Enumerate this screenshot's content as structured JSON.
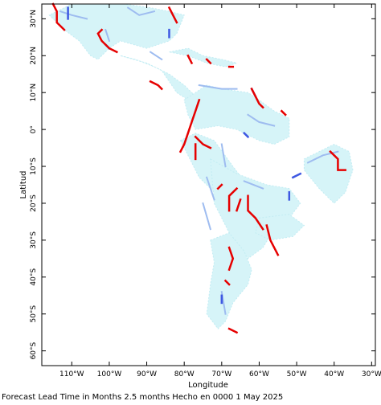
{
  "map": {
    "x_axis_label": "Longitude",
    "y_axis_label": "Latitud",
    "lon_ticks": [
      {
        "value": -110,
        "label": "110°W"
      },
      {
        "value": -100,
        "label": "100°W"
      },
      {
        "value": -90,
        "label": "90°W"
      },
      {
        "value": -80,
        "label": "80°W"
      },
      {
        "value": -70,
        "label": "70°W"
      },
      {
        "value": -60,
        "label": "60°W"
      },
      {
        "value": -50,
        "label": "50°W"
      },
      {
        "value": -40,
        "label": "40°W"
      },
      {
        "value": -30,
        "label": "30°W"
      }
    ],
    "lat_ticks": [
      {
        "value": 30,
        "label": "30°N"
      },
      {
        "value": 20,
        "label": "20°N"
      },
      {
        "value": 10,
        "label": "10°N"
      },
      {
        "value": 0,
        "label": "0°"
      },
      {
        "value": -10,
        "label": "10°S"
      },
      {
        "value": -20,
        "label": "20°S"
      },
      {
        "value": -30,
        "label": "30°S"
      },
      {
        "value": -40,
        "label": "40°S"
      },
      {
        "value": -50,
        "label": "50°S"
      },
      {
        "value": -60,
        "label": "60°S"
      }
    ],
    "lon_range": [
      -118,
      -29
    ],
    "lat_range": [
      -64,
      34
    ],
    "colors": {
      "frame": "#000000",
      "light": "#d6f4f8",
      "medium": "#9ebcf0",
      "dark_blue": "#3e58e2",
      "red": "#e60000"
    },
    "light_regions": [
      [
        [
          -110,
          34
        ],
        [
          -96,
          34
        ],
        [
          -89,
          33
        ],
        [
          -84,
          32
        ],
        [
          -80,
          31
        ],
        [
          -82,
          26
        ],
        [
          -84,
          24
        ],
        [
          -90,
          22
        ],
        [
          -97,
          24
        ],
        [
          -100,
          22
        ],
        [
          -103,
          19
        ],
        [
          -105,
          20
        ],
        [
          -108,
          24
        ],
        [
          -112,
          27
        ],
        [
          -116,
          31
        ]
      ],
      [
        [
          -97,
          20
        ],
        [
          -90,
          18
        ],
        [
          -86,
          16
        ],
        [
          -84,
          13
        ],
        [
          -82,
          10
        ],
        [
          -79,
          8
        ],
        [
          -77,
          9
        ],
        [
          -80,
          12
        ],
        [
          -84,
          15
        ],
        [
          -88,
          17
        ],
        [
          -93,
          19
        ]
      ],
      [
        [
          -84,
          21
        ],
        [
          -79,
          22
        ],
        [
          -75,
          20
        ],
        [
          -70,
          19
        ],
        [
          -66,
          18
        ],
        [
          -69,
          17
        ],
        [
          -74,
          18
        ],
        [
          -79,
          20
        ]
      ],
      [
        [
          -80,
          8
        ],
        [
          -74,
          12
        ],
        [
          -70,
          11
        ],
        [
          -63,
          10
        ],
        [
          -60,
          8
        ],
        [
          -56,
          5
        ],
        [
          -52,
          3
        ],
        [
          -52,
          -2
        ],
        [
          -56,
          -4
        ],
        [
          -60,
          -3
        ],
        [
          -66,
          0
        ],
        [
          -71,
          1
        ],
        [
          -77,
          0
        ],
        [
          -79,
          4
        ]
      ],
      [
        [
          -81,
          -3
        ],
        [
          -77,
          -1
        ],
        [
          -72,
          -3
        ],
        [
          -67,
          -10
        ],
        [
          -64,
          -14
        ],
        [
          -62,
          -18
        ],
        [
          -64,
          -22
        ],
        [
          -69,
          -22
        ],
        [
          -71,
          -18
        ],
        [
          -76,
          -13
        ],
        [
          -79,
          -7
        ]
      ],
      [
        [
          -73,
          -8
        ],
        [
          -66,
          -12
        ],
        [
          -58,
          -15
        ],
        [
          -52,
          -16
        ],
        [
          -49,
          -20
        ],
        [
          -52,
          -24
        ],
        [
          -56,
          -27
        ],
        [
          -59,
          -32
        ],
        [
          -63,
          -35
        ],
        [
          -67,
          -30
        ],
        [
          -69,
          -26
        ],
        [
          -72,
          -20
        ]
      ],
      [
        [
          -73,
          -30
        ],
        [
          -68,
          -28
        ],
        [
          -64,
          -33
        ],
        [
          -62,
          -38
        ],
        [
          -63,
          -42
        ],
        [
          -67,
          -47
        ],
        [
          -69,
          -52
        ],
        [
          -71,
          -54
        ],
        [
          -74,
          -50
        ],
        [
          -73,
          -42
        ],
        [
          -72,
          -36
        ]
      ],
      [
        [
          -60,
          -24
        ],
        [
          -52,
          -23
        ],
        [
          -48,
          -26
        ],
        [
          -51,
          -29
        ],
        [
          -57,
          -30
        ],
        [
          -61,
          -28
        ]
      ],
      [
        [
          -48,
          -8
        ],
        [
          -40,
          -4
        ],
        [
          -36,
          -6
        ],
        [
          -35,
          -11
        ],
        [
          -37,
          -17
        ],
        [
          -40,
          -20
        ],
        [
          -44,
          -16
        ],
        [
          -48,
          -11
        ]
      ]
    ],
    "medium_segments": [
      [
        [
          -113,
          32
        ],
        [
          -110,
          31
        ],
        [
          -106,
          30
        ]
      ],
      [
        [
          -95,
          33
        ],
        [
          -92,
          31
        ],
        [
          -88,
          32
        ]
      ],
      [
        [
          -101,
          27
        ],
        [
          -100,
          24
        ]
      ],
      [
        [
          -89,
          21
        ],
        [
          -86,
          19
        ]
      ],
      [
        [
          -76,
          12
        ],
        [
          -70,
          11
        ],
        [
          -66,
          11
        ]
      ],
      [
        [
          -63,
          4
        ],
        [
          -60,
          2
        ],
        [
          -56,
          1
        ]
      ],
      [
        [
          -70,
          -4
        ],
        [
          -69,
          -10
        ]
      ],
      [
        [
          -74,
          -13
        ],
        [
          -72,
          -19
        ]
      ],
      [
        [
          -64,
          -14
        ],
        [
          -59,
          -16
        ]
      ],
      [
        [
          -75,
          -20
        ],
        [
          -73,
          -27
        ]
      ],
      [
        [
          -47,
          -9
        ],
        [
          -43,
          -7
        ],
        [
          -39,
          -6
        ]
      ],
      [
        [
          -70,
          -44
        ],
        [
          -69,
          -50
        ]
      ]
    ],
    "dark_blue_segments": [
      [
        [
          -111,
          33
        ],
        [
          -111,
          30
        ]
      ],
      [
        [
          -101,
          23
        ],
        [
          -100,
          22
        ]
      ],
      [
        [
          -84,
          27
        ],
        [
          -84,
          25
        ]
      ],
      [
        [
          -62,
          11
        ],
        [
          -61,
          9
        ]
      ],
      [
        [
          -64,
          -1
        ],
        [
          -63,
          -2
        ]
      ],
      [
        [
          -51,
          -13
        ],
        [
          -49,
          -12
        ]
      ],
      [
        [
          -52,
          -17
        ],
        [
          -52,
          -19
        ]
      ],
      [
        [
          -70,
          -45
        ],
        [
          -70,
          -47
        ]
      ]
    ],
    "red_segments": [
      [
        [
          -115,
          34
        ],
        [
          -114,
          32
        ],
        [
          -114,
          29
        ],
        [
          -112,
          27
        ]
      ],
      [
        [
          -102,
          27
        ],
        [
          -103,
          26
        ],
        [
          -102,
          24
        ],
        [
          -100,
          22
        ],
        [
          -98,
          21
        ]
      ],
      [
        [
          -84,
          33
        ],
        [
          -83,
          31
        ],
        [
          -82,
          29
        ]
      ],
      [
        [
          -79,
          20
        ],
        [
          -78,
          18
        ]
      ],
      [
        [
          -74,
          19
        ],
        [
          -73,
          18
        ]
      ],
      [
        [
          -68,
          17
        ],
        [
          -67,
          17
        ]
      ],
      [
        [
          -89,
          13
        ],
        [
          -87,
          12
        ],
        [
          -86,
          11
        ]
      ],
      [
        [
          -76,
          8
        ],
        [
          -77,
          5
        ],
        [
          -78,
          2
        ],
        [
          -79,
          -1
        ],
        [
          -80,
          -4
        ],
        [
          -81,
          -6
        ]
      ],
      [
        [
          -77,
          -2
        ],
        [
          -75,
          -4
        ],
        [
          -73,
          -5
        ]
      ],
      [
        [
          -77,
          -4
        ],
        [
          -77,
          -8
        ]
      ],
      [
        [
          -62,
          11
        ],
        [
          -61,
          9
        ],
        [
          -60,
          7
        ],
        [
          -59,
          6
        ]
      ],
      [
        [
          -54,
          5
        ],
        [
          -53,
          4
        ]
      ],
      [
        [
          -68,
          -22
        ],
        [
          -68,
          -18
        ],
        [
          -66,
          -16
        ]
      ],
      [
        [
          -66,
          -22
        ],
        [
          -65,
          -19
        ]
      ],
      [
        [
          -63,
          -18
        ],
        [
          -63,
          -22
        ],
        [
          -61,
          -24
        ],
        [
          -59,
          -27
        ]
      ],
      [
        [
          -70,
          -15
        ],
        [
          -71,
          -16
        ]
      ],
      [
        [
          -68,
          -32
        ],
        [
          -67,
          -35
        ],
        [
          -68,
          -38
        ]
      ],
      [
        [
          -58,
          -26
        ],
        [
          -57,
          -30
        ],
        [
          -56,
          -32
        ],
        [
          -55,
          -34
        ]
      ],
      [
        [
          -69,
          -41
        ],
        [
          -68,
          -42
        ]
      ],
      [
        [
          -41,
          -6
        ],
        [
          -39,
          -8
        ],
        [
          -39,
          -11
        ],
        [
          -37,
          -11
        ]
      ],
      [
        [
          -68,
          -54
        ],
        [
          -66,
          -55
        ]
      ]
    ]
  },
  "caption": {
    "text": "Forecast Lead Time in Months 2.5 months Hecho en 0000 1 May 2025"
  }
}
